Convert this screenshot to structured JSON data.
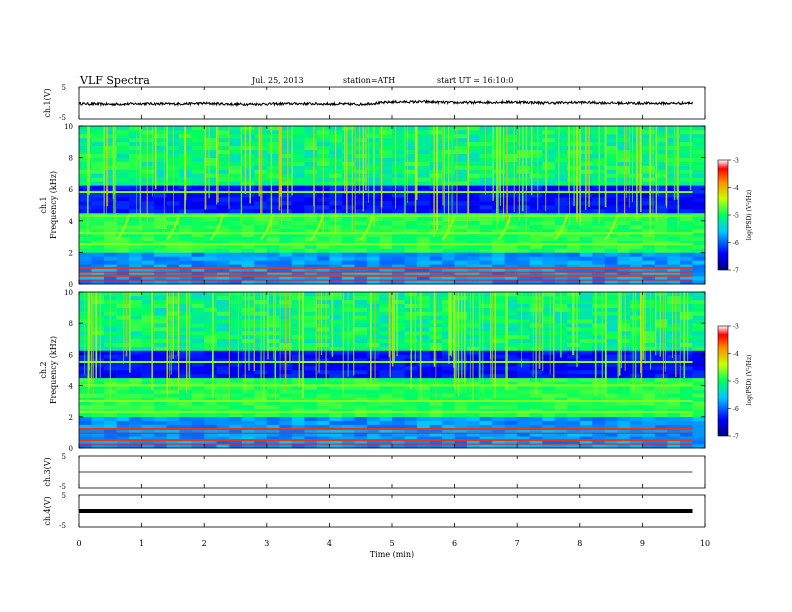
{
  "header": {
    "title": "VLF Spectra",
    "date": "Jul. 25, 2013",
    "station": "station=ATH",
    "start": "start UT = 16:10:0"
  },
  "chart_data": [
    {
      "type": "line",
      "panel": "ch1-waveform",
      "ylabel": "ch.1(V)",
      "ylim": [
        -5,
        5
      ],
      "yticks": [
        "5",
        "-5"
      ],
      "x": [
        0,
        0.5,
        1,
        1.5,
        2,
        2.5,
        3,
        3.5,
        4,
        4.5,
        5,
        5.5,
        6,
        6.5,
        7,
        7.5,
        8,
        8.5,
        9,
        9.5,
        9.8
      ],
      "values": [
        -0.2,
        -0.4,
        -0.2,
        -0.3,
        -0.1,
        -0.4,
        -0.3,
        -0.2,
        -0.3,
        -0.4,
        0.3,
        0.4,
        0.1,
        0.2,
        0.3,
        0.0,
        0.2,
        0.0,
        -0.1,
        -0.1,
        0.0
      ]
    },
    {
      "type": "heatmap",
      "panel": "ch1-spectrogram",
      "ylabel": "ch.1",
      "ylabel2": "Frequency (kHz)",
      "ylim": [
        0,
        10
      ],
      "yticks": [
        "0",
        "2",
        "4",
        "6",
        "8",
        "10"
      ],
      "colorbar": {
        "label": "log(PSD) (V²/Hz)",
        "range": [
          -7,
          -3
        ],
        "ticks": [
          "-3",
          "-4",
          "-5",
          "-6",
          "-7"
        ]
      },
      "strong_bands_khz": [
        0.5,
        1.0,
        2.5,
        3.2,
        4.3,
        5.8
      ],
      "chorus_onsets_min": [
        0.6,
        1.4,
        2.1,
        2.9,
        3.7,
        4.5,
        5.8,
        6.7,
        7.6,
        8.4
      ]
    },
    {
      "type": "heatmap",
      "panel": "ch2-spectrogram",
      "ylabel": "ch.2",
      "ylabel2": "Frequency (kHz)",
      "ylim": [
        0,
        10
      ],
      "yticks": [
        "0",
        "2",
        "4",
        "6",
        "8",
        "10"
      ],
      "colorbar": {
        "label": "log(PSD) (V²/Hz)",
        "range": [
          -7,
          -3
        ],
        "ticks": [
          "-3",
          "-4",
          "-5",
          "-6",
          "-7"
        ]
      },
      "strong_bands_khz": [
        0.5,
        1.2,
        2.3,
        3.0,
        4.0,
        5.5
      ]
    },
    {
      "type": "line",
      "panel": "ch3-waveform",
      "ylabel": "ch.3(V)",
      "ylim": [
        -5,
        5
      ],
      "yticks": [
        "5",
        "-5"
      ],
      "x": [
        0,
        9.8
      ],
      "values": [
        0,
        0
      ]
    },
    {
      "type": "line",
      "panel": "ch4-waveform",
      "ylabel": "ch.4(V)",
      "ylim": [
        -5,
        5
      ],
      "yticks": [
        "5",
        "-5"
      ],
      "x": [
        0,
        9.8
      ],
      "values": [
        0,
        0
      ]
    }
  ],
  "xaxis": {
    "label": "Time (min)",
    "xlim": [
      0,
      10
    ],
    "ticks": [
      "0",
      "1",
      "2",
      "3",
      "4",
      "5",
      "6",
      "7",
      "8",
      "9",
      "10"
    ]
  }
}
